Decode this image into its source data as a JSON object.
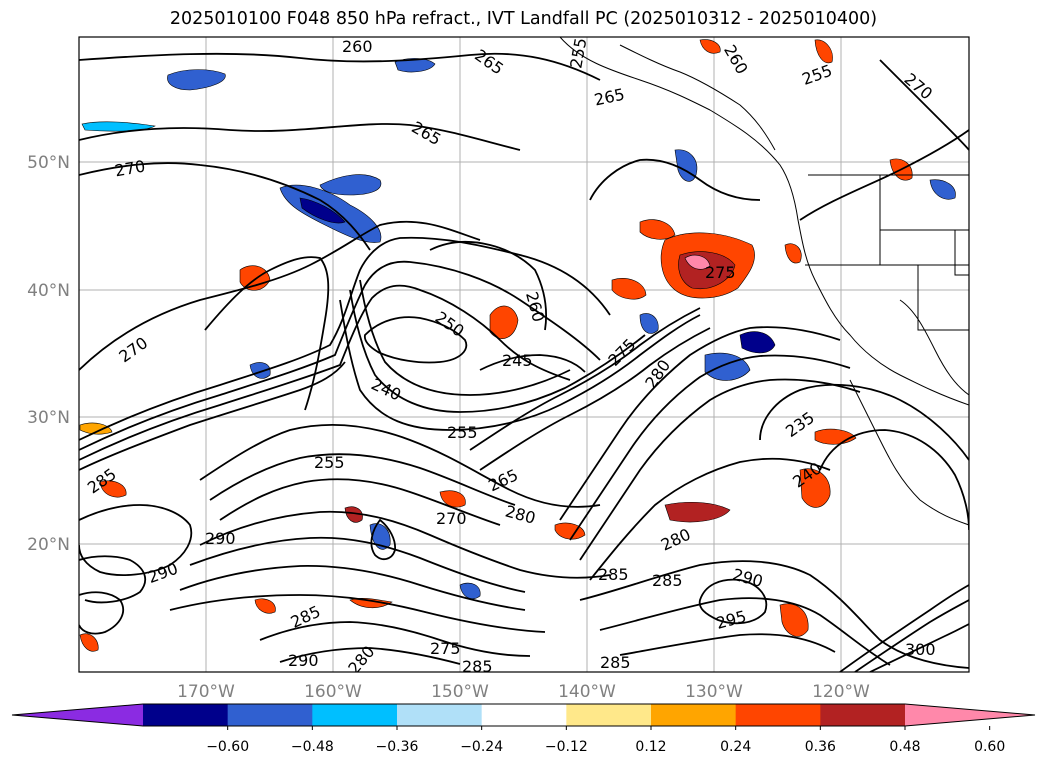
{
  "title": "2025010100 F048 850 hPa refract., IVT Landfall PC (2025010312 - 2025010400)",
  "lat_labels": [
    "50°N",
    "40°N",
    "30°N",
    "20°N"
  ],
  "lon_labels": [
    "170°W",
    "160°W",
    "150°W",
    "140°W",
    "130°W",
    "120°W"
  ],
  "contour_labels": [
    "260",
    "255",
    "265",
    "255",
    "260",
    "265",
    "270",
    "265",
    "270",
    "260",
    "275",
    "250",
    "245",
    "240",
    "255",
    "280",
    "275",
    "270",
    "235",
    "240",
    "255",
    "265",
    "280",
    "270",
    "280",
    "285",
    "285",
    "290",
    "295",
    "290",
    "285",
    "280",
    "275",
    "285",
    "290",
    "300",
    "285",
    "290",
    "285"
  ],
  "colorbar": {
    "ticks": [
      "−0.60",
      "−0.48",
      "−0.36",
      "−0.24",
      "−0.12",
      "0.12",
      "0.24",
      "0.36",
      "0.48",
      "0.60"
    ],
    "colors": [
      "#8b2be2",
      "#00008b",
      "#3060d0",
      "#00bfff",
      "#b0e0f8",
      "#ffffff",
      "#ffe88a",
      "#ffa500",
      "#ff4500",
      "#b22222",
      "#ff88aa"
    ]
  }
}
